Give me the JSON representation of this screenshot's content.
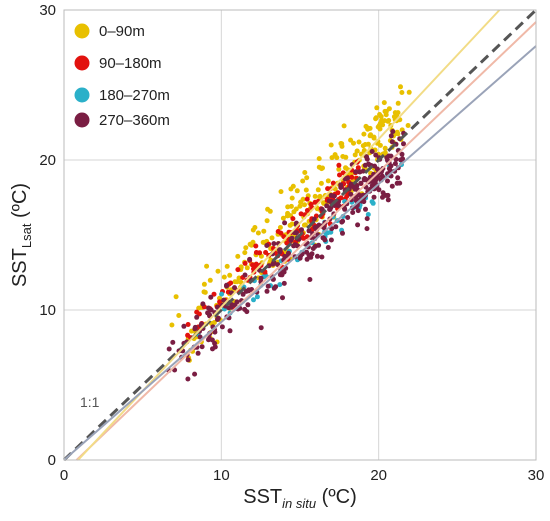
{
  "chart_data": {
    "type": "scatter",
    "xlabel": {
      "main": "SST",
      "sub": "in situ",
      "unit": " (ºC)"
    },
    "ylabel": {
      "main": "SST",
      "sub": "Lsat",
      "unit": " (ºC)"
    },
    "xlim": [
      0,
      30
    ],
    "ylim": [
      0,
      30
    ],
    "xticks": [
      0,
      10,
      20,
      30
    ],
    "yticks": [
      0,
      10,
      20,
      30
    ],
    "grid": true,
    "legend_position": "top-left",
    "reference_label": "1:1",
    "reference_lines": [
      {
        "style": "dashed",
        "color": "#555555",
        "slope": 1.0,
        "intercept": 0.0
      },
      {
        "style": "solid",
        "color": "#f0b9a8",
        "slope": 1.0,
        "intercept": -0.8
      },
      {
        "style": "solid",
        "color": "#f2dc86",
        "slope": 1.12,
        "intercept": -1.0
      },
      {
        "style": "solid",
        "color": "#9aa3b8",
        "slope": 0.92,
        "intercept": 0.0
      }
    ],
    "series": [
      {
        "name": "0–90m",
        "color": "#e8c000",
        "count": 300,
        "x_range": [
          6,
          22
        ],
        "slope": 1.05,
        "intercept": 0.5,
        "noise": 1.7
      },
      {
        "name": "90–180m",
        "color": "#e2120e",
        "count": 130,
        "x_range": [
          7,
          19
        ],
        "slope": 1.0,
        "intercept": 0.5,
        "noise": 1.0
      },
      {
        "name": "180–270m",
        "color": "#2bb0c9",
        "count": 45,
        "x_range": [
          8,
          22
        ],
        "slope": 0.93,
        "intercept": 0.0,
        "noise": 0.9
      },
      {
        "name": "270–360m",
        "color": "#7a1e43",
        "count": 330,
        "x_range": [
          6,
          22
        ],
        "slope": 0.95,
        "intercept": 0.0,
        "noise": 1.4
      }
    ]
  }
}
